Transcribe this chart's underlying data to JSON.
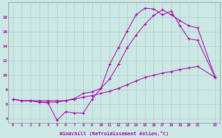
{
  "xlabel": "Windchill (Refroidissement éolien,°C)",
  "background_color": "#cce8e4",
  "grid_color": "#aacccc",
  "line_color": "#aa00aa",
  "x_ticks": [
    0,
    1,
    2,
    3,
    4,
    5,
    6,
    7,
    8,
    9,
    10,
    11,
    12,
    13,
    14,
    15,
    16,
    17,
    18,
    19,
    20,
    21,
    23
  ],
  "ylim": [
    3.5,
    20.0
  ],
  "xlim": [
    -0.5,
    23.5
  ],
  "y_ticks": [
    4,
    6,
    8,
    10,
    12,
    14,
    16,
    18
  ],
  "series": [
    {
      "x": [
        0,
        1,
        2,
        3,
        4,
        5,
        6,
        7,
        8,
        9,
        10,
        11,
        12,
        13,
        14,
        15,
        16,
        17,
        18,
        19,
        20,
        21,
        23
      ],
      "y": [
        6.7,
        6.5,
        6.5,
        6.3,
        6.2,
        3.8,
        5.0,
        4.8,
        4.8,
        6.7,
        8.2,
        11.5,
        13.8,
        16.1,
        18.3,
        19.2,
        19.1,
        18.3,
        18.8,
        16.8,
        15.0,
        14.8,
        9.7
      ]
    },
    {
      "x": [
        0,
        1,
        2,
        3,
        4,
        5,
        6,
        7,
        8,
        9,
        10,
        11,
        12,
        13,
        14,
        15,
        16,
        17,
        18,
        19,
        20,
        21,
        23
      ],
      "y": [
        6.7,
        6.5,
        6.5,
        6.3,
        6.3,
        6.3,
        6.5,
        6.8,
        7.5,
        7.7,
        8.2,
        9.5,
        11.5,
        13.8,
        15.5,
        17.0,
        18.2,
        19.0,
        18.3,
        17.5,
        16.8,
        16.5,
        9.7
      ]
    },
    {
      "x": [
        0,
        1,
        2,
        3,
        4,
        5,
        6,
        7,
        8,
        9,
        10,
        11,
        12,
        13,
        14,
        15,
        16,
        17,
        18,
        19,
        20,
        21,
        23
      ],
      "y": [
        6.7,
        6.5,
        6.5,
        6.5,
        6.5,
        6.5,
        6.5,
        6.7,
        7.0,
        7.2,
        7.5,
        7.8,
        8.2,
        8.7,
        9.2,
        9.7,
        10.0,
        10.3,
        10.5,
        10.8,
        11.0,
        11.2,
        9.7
      ]
    }
  ]
}
